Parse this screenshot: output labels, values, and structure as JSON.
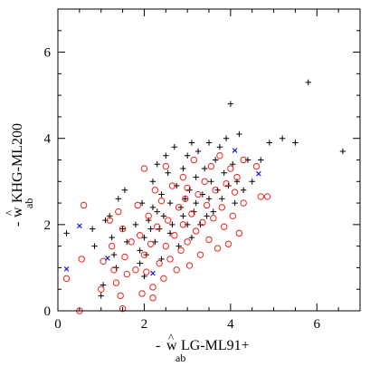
{
  "chart_data": {
    "type": "scatter",
    "title": "",
    "xlabel": {
      "prefix": "- ",
      "hat": "^",
      "symbol": "w",
      "subscript": "ab",
      "text": " LG-ML91+"
    },
    "ylabel": {
      "prefix": "- ",
      "hat": "^",
      "symbol": "w",
      "subscript": "ab",
      "text": " KHG-ML200"
    },
    "xlim": [
      0,
      7
    ],
    "ylim": [
      0,
      7
    ],
    "xticks": [
      0,
      2,
      4,
      6
    ],
    "yticks": [
      0,
      2,
      4,
      6
    ],
    "grid": false,
    "legend": "none",
    "series": [
      {
        "marker": "plus",
        "color": "#000000",
        "points": [
          [
            0.2,
            1.8
          ],
          [
            0.8,
            1.9
          ],
          [
            0.85,
            1.5
          ],
          [
            1.0,
            0.35
          ],
          [
            1.05,
            0.6
          ],
          [
            1.1,
            2.1
          ],
          [
            1.2,
            2.2
          ],
          [
            1.25,
            1.7
          ],
          [
            1.3,
            1.3
          ],
          [
            1.35,
            1.0
          ],
          [
            1.4,
            2.6
          ],
          [
            1.5,
            1.9
          ],
          [
            1.55,
            2.8
          ],
          [
            1.6,
            1.6
          ],
          [
            1.8,
            2.0
          ],
          [
            1.9,
            1.4
          ],
          [
            1.9,
            1.1
          ],
          [
            1.95,
            2.5
          ],
          [
            2.0,
            1.7
          ],
          [
            2.0,
            0.8
          ],
          [
            2.05,
            1.3
          ],
          [
            2.1,
            2.1
          ],
          [
            2.15,
            1.9
          ],
          [
            2.2,
            3.0
          ],
          [
            2.2,
            2.4
          ],
          [
            2.25,
            1.6
          ],
          [
            2.3,
            3.4
          ],
          [
            2.3,
            2.3
          ],
          [
            2.35,
            1.9
          ],
          [
            2.4,
            2.7
          ],
          [
            2.4,
            1.2
          ],
          [
            2.45,
            2.2
          ],
          [
            2.5,
            3.6
          ],
          [
            2.55,
            3.2
          ],
          [
            2.6,
            2.5
          ],
          [
            2.6,
            1.8
          ],
          [
            2.65,
            2.0
          ],
          [
            2.7,
            3.8
          ],
          [
            2.75,
            2.9
          ],
          [
            2.8,
            1.5
          ],
          [
            2.85,
            2.4
          ],
          [
            2.9,
            3.3
          ],
          [
            2.9,
            2.2
          ],
          [
            2.95,
            2.6
          ],
          [
            3.0,
            3.6
          ],
          [
            3.0,
            2.0
          ],
          [
            3.05,
            2.8
          ],
          [
            3.1,
            3.9
          ],
          [
            3.1,
            1.7
          ],
          [
            3.15,
            2.3
          ],
          [
            3.2,
            3.1
          ],
          [
            3.2,
            2.5
          ],
          [
            3.25,
            3.7
          ],
          [
            3.3,
            2.0
          ],
          [
            3.35,
            2.7
          ],
          [
            3.4,
            3.3
          ],
          [
            3.45,
            2.2
          ],
          [
            3.5,
            3.9
          ],
          [
            3.5,
            2.6
          ],
          [
            3.55,
            3.0
          ],
          [
            3.6,
            2.3
          ],
          [
            3.65,
            3.5
          ],
          [
            3.7,
            2.8
          ],
          [
            3.75,
            3.8
          ],
          [
            3.8,
            2.6
          ],
          [
            3.85,
            3.2
          ],
          [
            3.9,
            4.0
          ],
          [
            3.95,
            2.9
          ],
          [
            4.0,
            4.8
          ],
          [
            4.05,
            3.4
          ],
          [
            4.1,
            2.5
          ],
          [
            4.15,
            3.0
          ],
          [
            4.2,
            4.1
          ],
          [
            4.3,
            2.8
          ],
          [
            4.4,
            3.5
          ],
          [
            4.5,
            3.0
          ],
          [
            4.7,
            3.5
          ],
          [
            4.9,
            3.9
          ],
          [
            5.2,
            4.0
          ],
          [
            5.5,
            3.9
          ],
          [
            5.8,
            5.3
          ],
          [
            6.6,
            3.7
          ]
        ]
      },
      {
        "marker": "circle",
        "color": "#e8261c",
        "points": [
          [
            0.2,
            0.75
          ],
          [
            0.5,
            0.0
          ],
          [
            0.55,
            1.2
          ],
          [
            0.6,
            2.45
          ],
          [
            1.0,
            0.5
          ],
          [
            1.05,
            1.15
          ],
          [
            1.2,
            2.1
          ],
          [
            1.25,
            1.5
          ],
          [
            1.3,
            0.95
          ],
          [
            1.35,
            0.65
          ],
          [
            1.4,
            2.3
          ],
          [
            1.45,
            0.35
          ],
          [
            1.5,
            1.9
          ],
          [
            1.5,
            0.05
          ],
          [
            1.55,
            1.25
          ],
          [
            1.6,
            0.85
          ],
          [
            1.7,
            1.6
          ],
          [
            1.8,
            0.95
          ],
          [
            1.85,
            2.45
          ],
          [
            1.9,
            1.75
          ],
          [
            1.95,
            0.4
          ],
          [
            2.0,
            1.3
          ],
          [
            2.0,
            3.3
          ],
          [
            2.05,
            0.9
          ],
          [
            2.1,
            2.2
          ],
          [
            2.15,
            1.55
          ],
          [
            2.2,
            0.55
          ],
          [
            2.2,
            0.3
          ],
          [
            2.25,
            2.8
          ],
          [
            2.3,
            1.95
          ],
          [
            2.35,
            1.1
          ],
          [
            2.4,
            2.55
          ],
          [
            2.45,
            0.75
          ],
          [
            2.5,
            3.35
          ],
          [
            2.5,
            1.5
          ],
          [
            2.55,
            2.1
          ],
          [
            2.6,
            1.2
          ],
          [
            2.65,
            2.9
          ],
          [
            2.7,
            1.75
          ],
          [
            2.75,
            0.95
          ],
          [
            2.8,
            2.4
          ],
          [
            2.85,
            1.4
          ],
          [
            2.9,
            3.1
          ],
          [
            2.9,
            2.0
          ],
          [
            2.95,
            2.6
          ],
          [
            3.0,
            1.6
          ],
          [
            3.0,
            2.85
          ],
          [
            3.05,
            1.05
          ],
          [
            3.1,
            2.25
          ],
          [
            3.15,
            3.5
          ],
          [
            3.2,
            1.85
          ],
          [
            3.25,
            2.7
          ],
          [
            3.3,
            1.3
          ],
          [
            3.35,
            2.05
          ],
          [
            3.4,
            3.0
          ],
          [
            3.45,
            2.45
          ],
          [
            3.5,
            1.65
          ],
          [
            3.55,
            3.35
          ],
          [
            3.6,
            2.15
          ],
          [
            3.65,
            2.8
          ],
          [
            3.7,
            1.45
          ],
          [
            3.75,
            3.6
          ],
          [
            3.8,
            2.4
          ],
          [
            3.85,
            1.95
          ],
          [
            3.9,
            2.95
          ],
          [
            3.95,
            1.55
          ],
          [
            4.0,
            3.3
          ],
          [
            4.05,
            2.2
          ],
          [
            4.1,
            2.75
          ],
          [
            4.15,
            3.1
          ],
          [
            4.2,
            1.8
          ],
          [
            4.3,
            2.5
          ],
          [
            4.3,
            3.5
          ],
          [
            4.6,
            3.35
          ],
          [
            4.7,
            2.65
          ],
          [
            4.85,
            2.65
          ]
        ]
      },
      {
        "marker": "x",
        "color": "#1515d6",
        "points": [
          [
            0.2,
            0.97
          ],
          [
            0.5,
            1.97
          ],
          [
            1.15,
            1.22
          ],
          [
            2.2,
            0.87
          ],
          [
            4.1,
            3.72
          ],
          [
            4.65,
            3.18
          ]
        ]
      }
    ]
  }
}
